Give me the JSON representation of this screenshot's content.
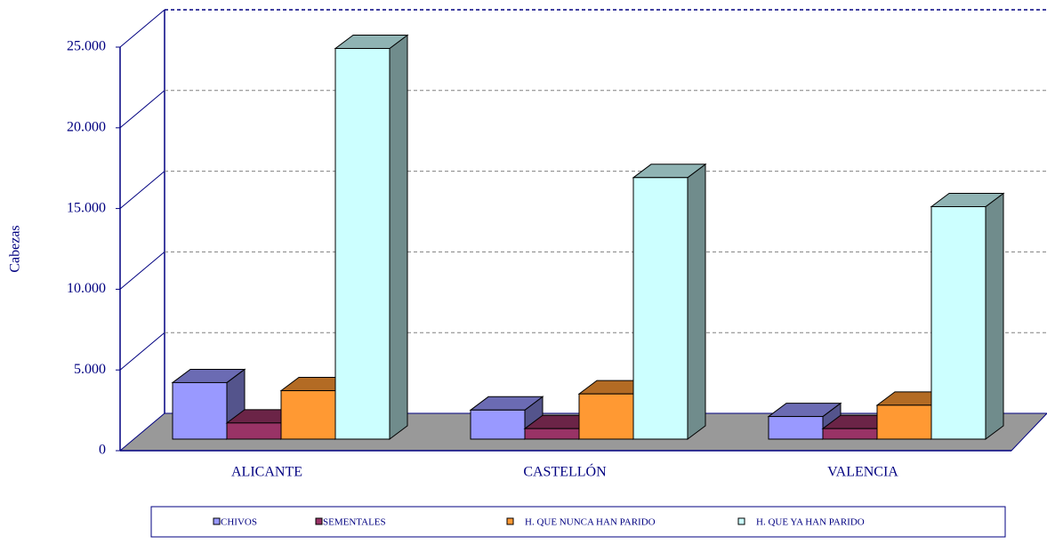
{
  "chart_data": {
    "type": "bar",
    "ylabel": "Cabezas",
    "categories": [
      "ALICANTE",
      "CASTELLÓN",
      "VALENCIA"
    ],
    "series": [
      {
        "name": "CHIVOS",
        "color": "#9999ff",
        "values": [
          3500,
          1800,
          1400
        ]
      },
      {
        "name": "SEMENTALES",
        "color": "#993366",
        "values": [
          1000,
          650,
          650
        ]
      },
      {
        "name": "H.  QUE NUNCA HAN PARIDO",
        "color": "#ff9933",
        "values": [
          3000,
          2800,
          2100
        ]
      },
      {
        "name": "H. QUE YA HAN PARIDO",
        "color": "#ccffff",
        "values": [
          24200,
          16200,
          14400
        ]
      }
    ],
    "ylim": [
      0,
      25000
    ],
    "yticks": [
      0,
      {
        "value": 5000,
        "label": "5.000"
      },
      {
        "value": 10000,
        "label": "10.000"
      },
      {
        "value": 15000,
        "label": "15.000"
      },
      {
        "value": 20000,
        "label": "20.000"
      },
      {
        "value": 25000,
        "label": "25.000"
      }
    ],
    "grid": true,
    "legend": "bottom"
  }
}
